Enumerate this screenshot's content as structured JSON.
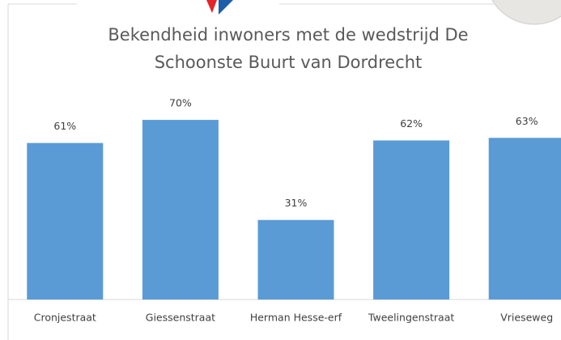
{
  "chart_data": {
    "type": "bar",
    "title": "Bekendheid inwoners met de wedstrijd De Schoonste Buurt van Dordrecht",
    "categories": [
      "Cronjestraat",
      "Giessenstraat",
      "Herman Hesse-erf",
      "Tweelingenstraat",
      "Vrieseweg"
    ],
    "values": [
      61,
      70,
      31,
      62,
      63
    ],
    "value_labels": [
      "61%",
      "70%",
      "31%",
      "62%",
      "63%"
    ],
    "color": "#5b9bd5",
    "ylim": [
      0,
      100
    ]
  }
}
